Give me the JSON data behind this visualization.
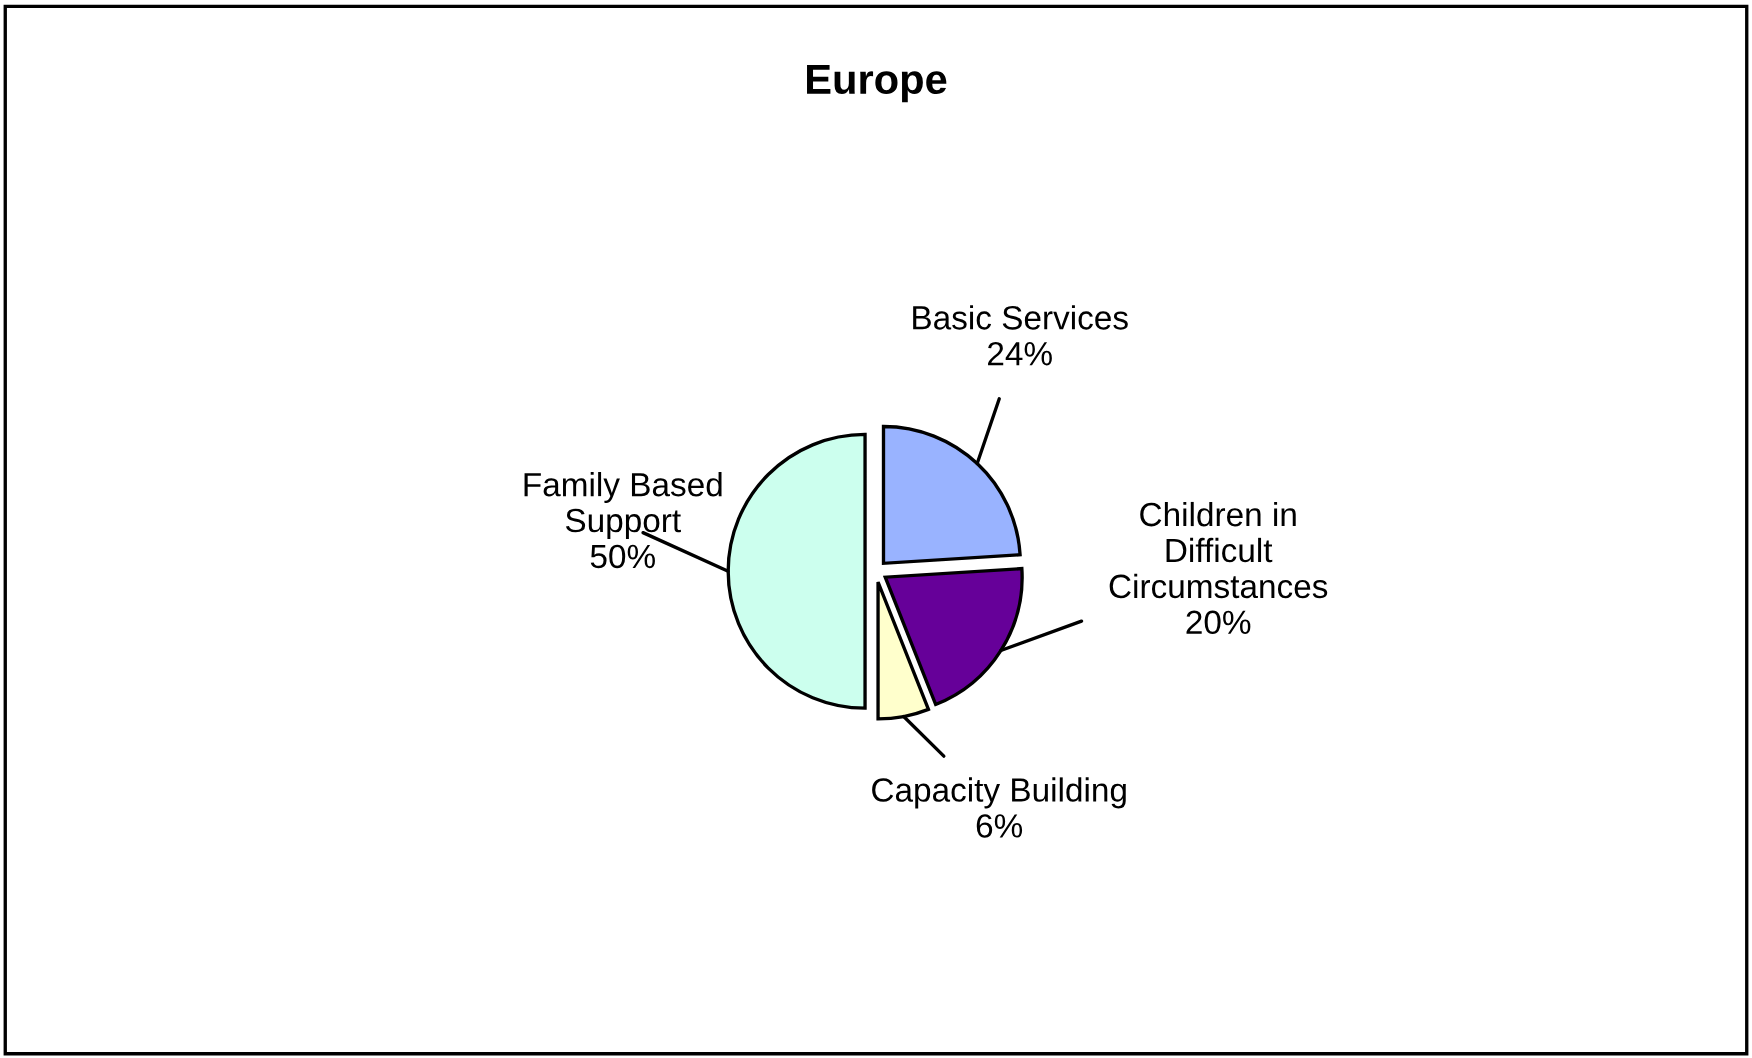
{
  "chart_data": {
    "type": "pie",
    "title": "Europe",
    "categories": [
      "Basic Services",
      "Children in\nDifficult\nCircumstances",
      "Capacity Building",
      "Family Based\nSupport"
    ],
    "values": [
      24,
      20,
      6,
      50
    ],
    "colors": [
      "#99b3ff",
      "#660099",
      "#ffffcc",
      "#ccffee"
    ],
    "value_labels": [
      "24%",
      "20%",
      "6%",
      "50%"
    ]
  }
}
